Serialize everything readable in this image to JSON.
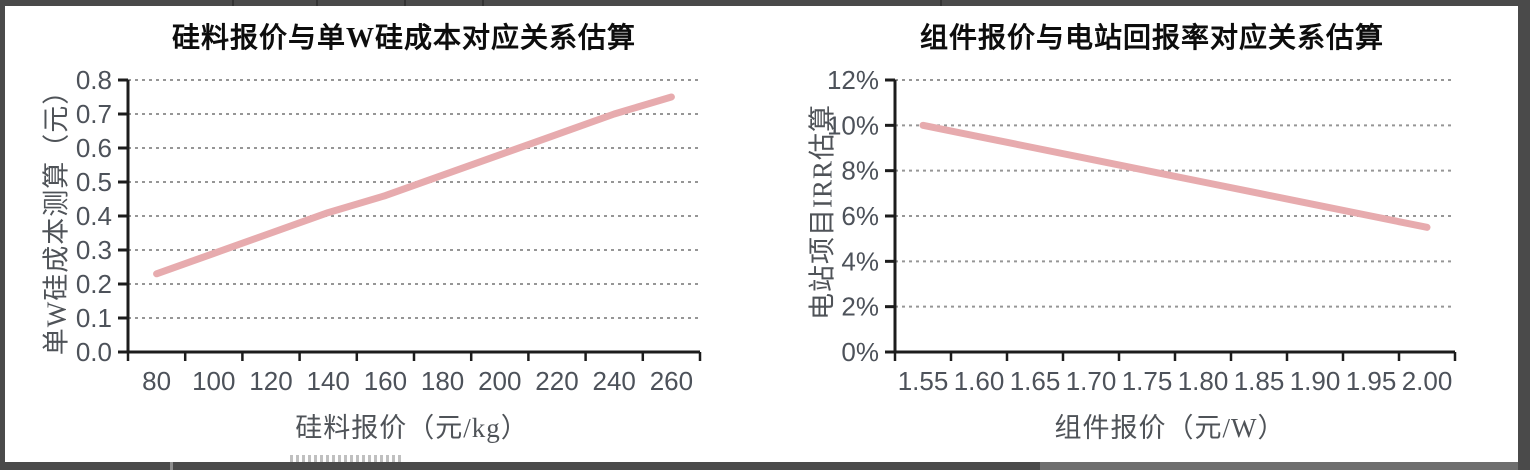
{
  "page": {
    "background": "#ffffff",
    "frame_color": "#4a4a4a",
    "accent_line_color": "#e7abae"
  },
  "chart_data": [
    {
      "type": "line",
      "title": "硅料报价与单W硅成本对应关系估算",
      "xlabel": "硅料报价（元/kg）",
      "ylabel": "单W硅成本测算（元）",
      "categories": [
        "80",
        "100",
        "120",
        "140",
        "160",
        "180",
        "200",
        "220",
        "240",
        "260"
      ],
      "values": [
        0.23,
        0.29,
        0.35,
        0.41,
        0.46,
        0.52,
        0.58,
        0.64,
        0.7,
        0.75
      ],
      "ylim": [
        0,
        0.8
      ],
      "yticks": [
        0,
        0.1,
        0.2,
        0.3,
        0.4,
        0.5,
        0.6,
        0.7,
        0.8
      ],
      "ytick_labels": [
        "0.0",
        "0.1",
        "0.2",
        "0.3",
        "0.4",
        "0.5",
        "0.6",
        "0.7",
        "0.8"
      ],
      "line_color": "#e7abae",
      "grid": "horizontal-dashed",
      "legend": "none"
    },
    {
      "type": "line",
      "title": "组件报价与电站回报率对应关系估算",
      "xlabel": "组件报价（元/W）",
      "ylabel": "电站项目IRR估算",
      "categories": [
        "1.55",
        "1.60",
        "1.65",
        "1.70",
        "1.75",
        "1.80",
        "1.85",
        "1.90",
        "1.95",
        "2.00"
      ],
      "values": [
        10,
        9.5,
        9,
        8.5,
        8,
        7.5,
        7,
        6.5,
        6,
        5.5
      ],
      "ylim": [
        0,
        12
      ],
      "yticks": [
        0,
        2,
        4,
        6,
        8,
        10,
        12
      ],
      "ytick_labels": [
        "0%",
        "2%",
        "4%",
        "6%",
        "8%",
        "10%",
        "12%"
      ],
      "line_color": "#e7abae",
      "grid": "horizontal-dashed",
      "legend": "none"
    }
  ]
}
